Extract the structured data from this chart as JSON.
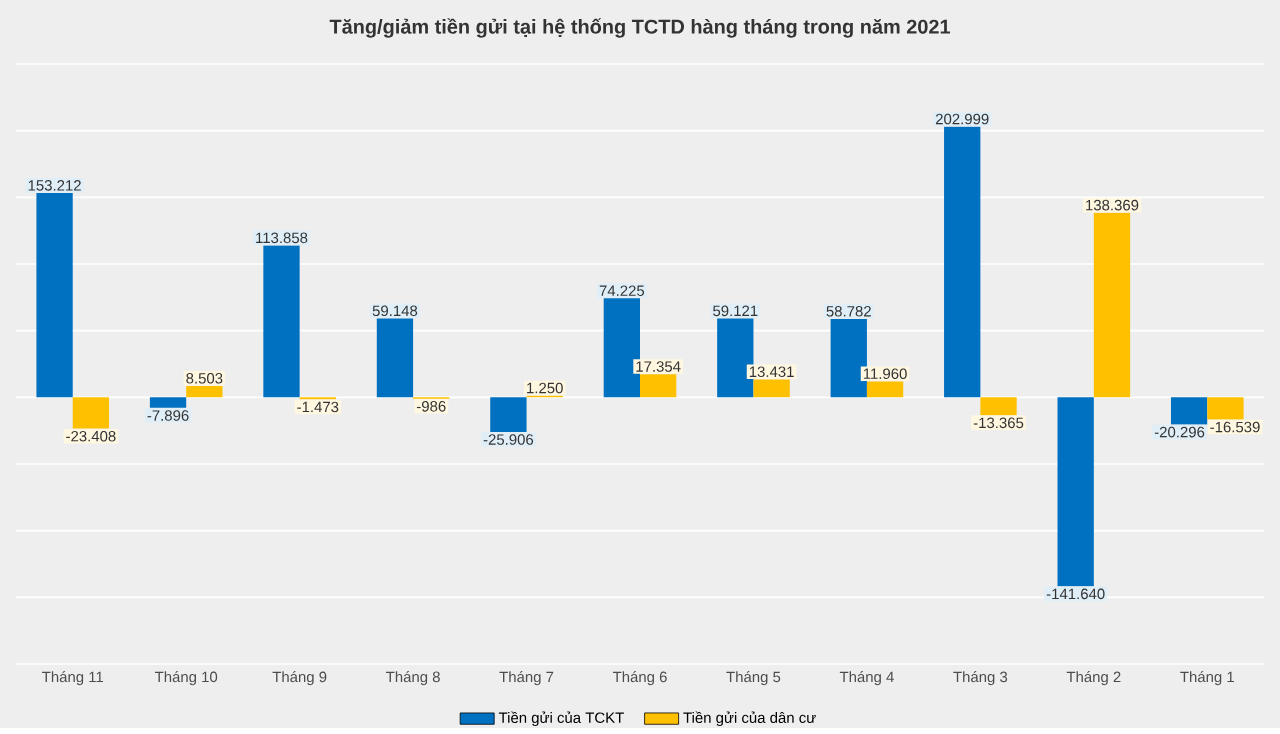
{
  "chart_data": {
    "type": "bar",
    "title": "Tăng/giảm tiền gửi tại hệ thống TCTD hàng tháng trong năm 2021",
    "categories": [
      "Tháng 11",
      "Tháng 10",
      "Tháng 9",
      "Tháng 8",
      "Tháng 7",
      "Tháng 6",
      "Tháng 5",
      "Tháng 4",
      "Tháng 3",
      "Tháng 2",
      "Tháng 1"
    ],
    "series": [
      {
        "name": "Tiền gửi của TCKT",
        "color": "#0070c0",
        "values": [
          153212,
          -7896,
          113858,
          59148,
          -25906,
          74225,
          59121,
          58782,
          202999,
          -141640,
          -20296
        ],
        "value_labels": [
          "153.212",
          "-7.896",
          "113.858",
          "59.148",
          "-25.906",
          "74.225",
          "59.121",
          "58.782",
          "202.999",
          "-141.640",
          "-20.296"
        ]
      },
      {
        "name": "Tiền gửi của dân cư",
        "color": "#ffc000",
        "values": [
          -23408,
          8503,
          -1473,
          -986,
          1250,
          17354,
          13431,
          11960,
          -13365,
          138369,
          -16539
        ],
        "value_labels": [
          "-23.408",
          "8.503",
          "-1.473",
          "-986",
          "1.250",
          "17.354",
          "13.431",
          "11.960",
          "-13.365",
          "138.369",
          "-16.539"
        ]
      }
    ],
    "ylim": [
      -200000,
      250000
    ],
    "yticks": [
      {
        "value": -200000,
        "label": null
      },
      {
        "value": -150000,
        "label": null
      },
      {
        "value": -100000,
        "label": null
      },
      {
        "value": -50000,
        "label": null
      },
      {
        "value": 0,
        "label": null
      },
      {
        "value": 50000,
        "label": null
      },
      {
        "value": 100000,
        "label": null
      },
      {
        "value": 150000,
        "label": null
      },
      {
        "value": 200000,
        "label": null
      },
      {
        "value": 250000,
        "label": null
      }
    ],
    "tick_labels": "x",
    "grid": "y",
    "legend": "bottom"
  }
}
